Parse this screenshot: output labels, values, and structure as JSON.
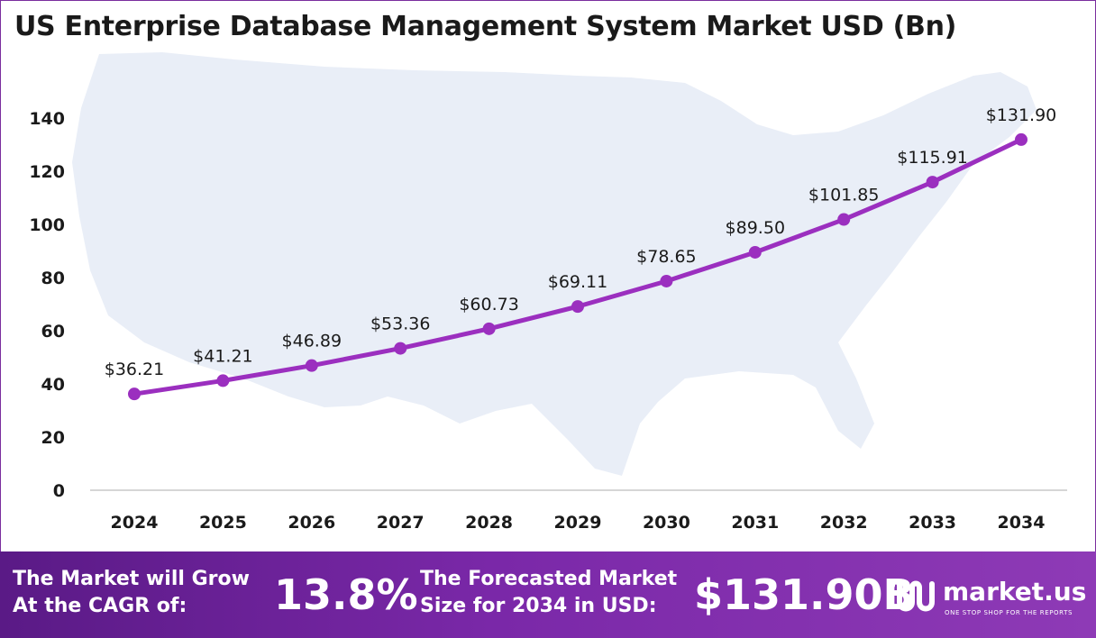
{
  "title": "US Enterprise Database Management System Market USD (Bn)",
  "chart_data": {
    "type": "line",
    "title": "US Enterprise Database Management System Market USD (Bn)",
    "categories": [
      "2024",
      "2025",
      "2026",
      "2027",
      "2028",
      "2029",
      "2030",
      "2031",
      "2032",
      "2033",
      "2034"
    ],
    "values": [
      36.21,
      41.21,
      46.89,
      53.36,
      60.73,
      69.11,
      78.65,
      89.5,
      101.85,
      115.91,
      131.9
    ],
    "data_labels": [
      "$36.21",
      "$41.21",
      "$46.89",
      "$53.36",
      "$60.73",
      "$69.11",
      "$78.65",
      "$89.50",
      "$101.85",
      "$115.91",
      "$131.90"
    ],
    "y_ticks": [
      "0",
      "20",
      "40",
      "60",
      "80",
      "100",
      "120",
      "140"
    ],
    "ylim": [
      0,
      140
    ],
    "grid": false,
    "legend": "none",
    "xlabel": "",
    "ylabel": "",
    "line_color": "#9b2fbf",
    "background_shape": "us-map"
  },
  "footer": {
    "cagr_label_line1": "The Market will Grow",
    "cagr_label_line2": "At the CAGR of:",
    "cagr_value": "13.8%",
    "forecast_label_line1": "The Forecasted Market",
    "forecast_label_line2": "Size for 2034 in USD:",
    "forecast_value": "$131.90B",
    "brand_name": "market.us",
    "brand_tagline": "ONE STOP SHOP FOR THE REPORTS",
    "brand_icon": "market-us-logo-icon",
    "background_color": "#7a28a8"
  }
}
